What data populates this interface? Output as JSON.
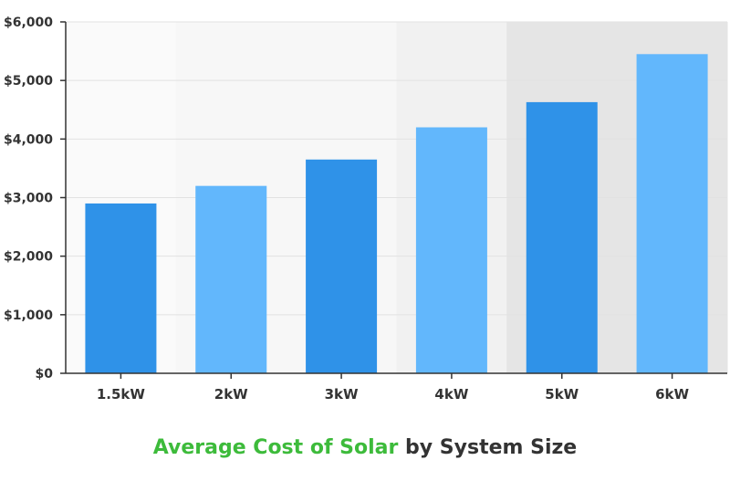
{
  "chart_data": {
    "type": "bar",
    "title": "Average Cost of Solar by System Size",
    "title_highlight": "Average Cost of Solar",
    "title_rest": "by System Size",
    "categories": [
      "1.5kW",
      "2kW",
      "3kW",
      "4kW",
      "5kW",
      "6kW"
    ],
    "values": [
      2900,
      3200,
      3650,
      4200,
      4630,
      5450
    ],
    "ylim": [
      0,
      6000
    ],
    "yticks": [
      0,
      1000,
      2000,
      3000,
      4000,
      5000,
      6000
    ],
    "ytick_labels": [
      "$0",
      "$1,000",
      "$2,000",
      "$3,000",
      "$4,000",
      "$5,000",
      "$6,000"
    ],
    "grid": true,
    "legend": "none",
    "bar_colors": [
      "#2f92e8",
      "#62b7fc",
      "#2f92e8",
      "#62b7fc",
      "#2f92e8",
      "#62b7fc"
    ],
    "background_bands": [
      "#fafafa",
      "#f7f7f7",
      "#f7f7f7",
      "#f1f1f1",
      "#e5e5e5",
      "#e5e5e5"
    ],
    "title_colors": {
      "highlight": "#3dbb3b",
      "rest": "#333333"
    }
  }
}
